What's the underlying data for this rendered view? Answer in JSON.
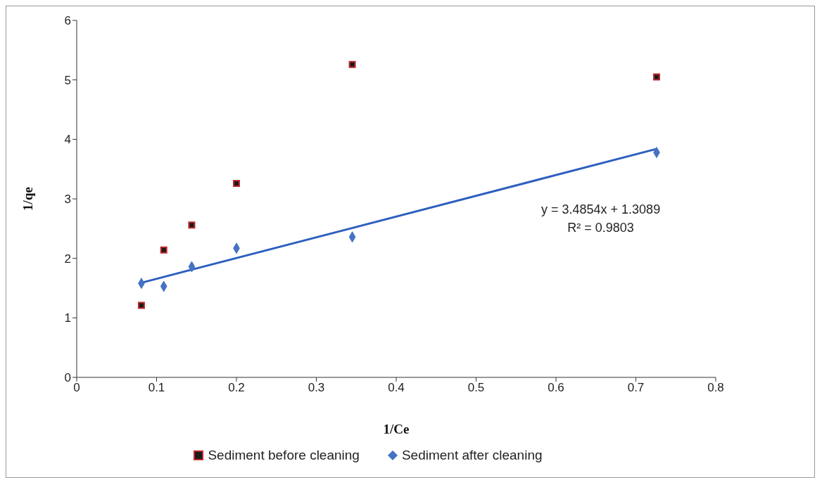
{
  "chart_data": {
    "type": "scatter",
    "xlabel": "1/Ce",
    "ylabel": "1/qe",
    "xlim": [
      0,
      0.8
    ],
    "xticks": [
      0,
      0.1,
      0.2,
      0.3,
      0.4,
      0.5,
      0.6,
      0.7,
      0.8
    ],
    "ylim": [
      0,
      6
    ],
    "yticks": [
      0,
      1,
      2,
      3,
      4,
      5,
      6
    ],
    "legend": "bottom",
    "series": [
      {
        "name": "Sediment before cleaning",
        "color": "#1a1a1a",
        "marker": "square",
        "x": [
          0.081,
          0.109,
          0.144,
          0.2,
          0.345,
          0.726
        ],
        "values": [
          1.21,
          2.14,
          2.56,
          3.26,
          5.26,
          5.05
        ]
      },
      {
        "name": "Sediment after cleaning",
        "color": "#4472c4",
        "marker": "diamond",
        "x": [
          0.081,
          0.109,
          0.144,
          0.2,
          0.345,
          0.726
        ],
        "values": [
          1.58,
          1.53,
          1.86,
          2.17,
          2.36,
          3.78
        ]
      },
      {
        "type": "line",
        "color": "#2e5fbf",
        "marker": "none",
        "x": [
          0.081,
          0.726
        ],
        "values": [
          1.59,
          3.84
        ]
      }
    ],
    "annotations": [
      "y = 3.4854x + 1.3089",
      "R² = 0.9803"
    ]
  }
}
